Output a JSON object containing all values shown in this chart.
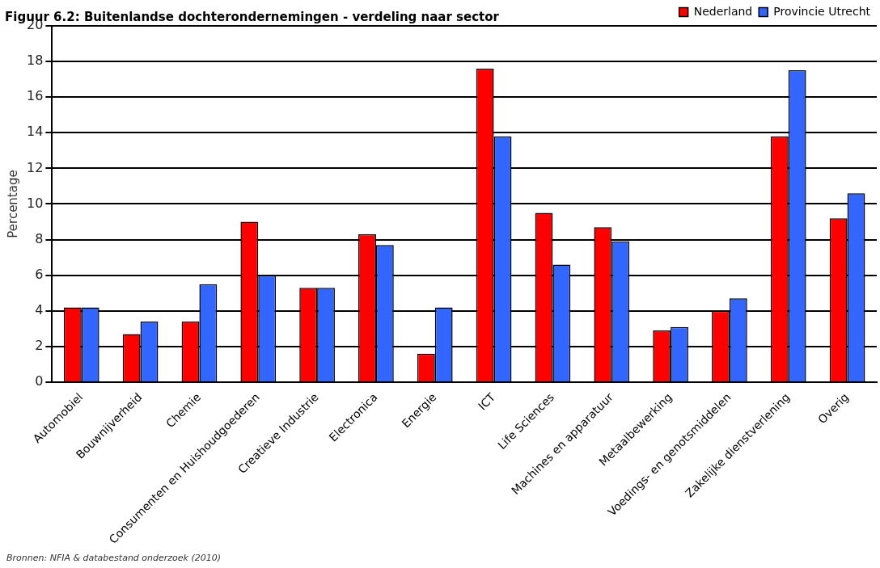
{
  "chart_data": {
    "type": "bar",
    "title": "Figuur 6.2: Buitenlandse dochterondernemingen - verdeling naar sector",
    "ylabel": "Percentage",
    "categories": [
      "Automobiel",
      "Bouwnijverheid",
      "Chemie",
      "Consumenten en Huishoudgoederen",
      "Creatieve Industrie",
      "Electronica",
      "Energie",
      "ICT",
      "Life Sciences",
      "Machines en apparatuur",
      "Metaalbewerking",
      "Voedings- en genotsmiddelen",
      "Zakelijke dienstverlening",
      "Overig"
    ],
    "series": [
      {
        "name": "Nederland",
        "color": "#ff0000",
        "values": [
          4.2,
          2.7,
          3.4,
          9.0,
          5.3,
          8.3,
          1.6,
          17.6,
          9.5,
          8.7,
          2.9,
          4.0,
          13.8,
          9.2
        ]
      },
      {
        "name": "Provincie Utrecht",
        "color": "#3366ff",
        "values": [
          4.2,
          3.4,
          5.5,
          6.0,
          5.3,
          7.7,
          4.2,
          13.8,
          6.6,
          7.9,
          3.1,
          4.7,
          17.5,
          10.6
        ]
      }
    ],
    "ylim": [
      0,
      20
    ],
    "yticks": [
      0,
      2,
      4,
      6,
      8,
      10,
      12,
      14,
      16,
      18,
      20
    ],
    "grid": "y",
    "legend": "top right",
    "annotations": [
      "Bronnen: NFIA & databestand onderzoek (2010)"
    ]
  }
}
